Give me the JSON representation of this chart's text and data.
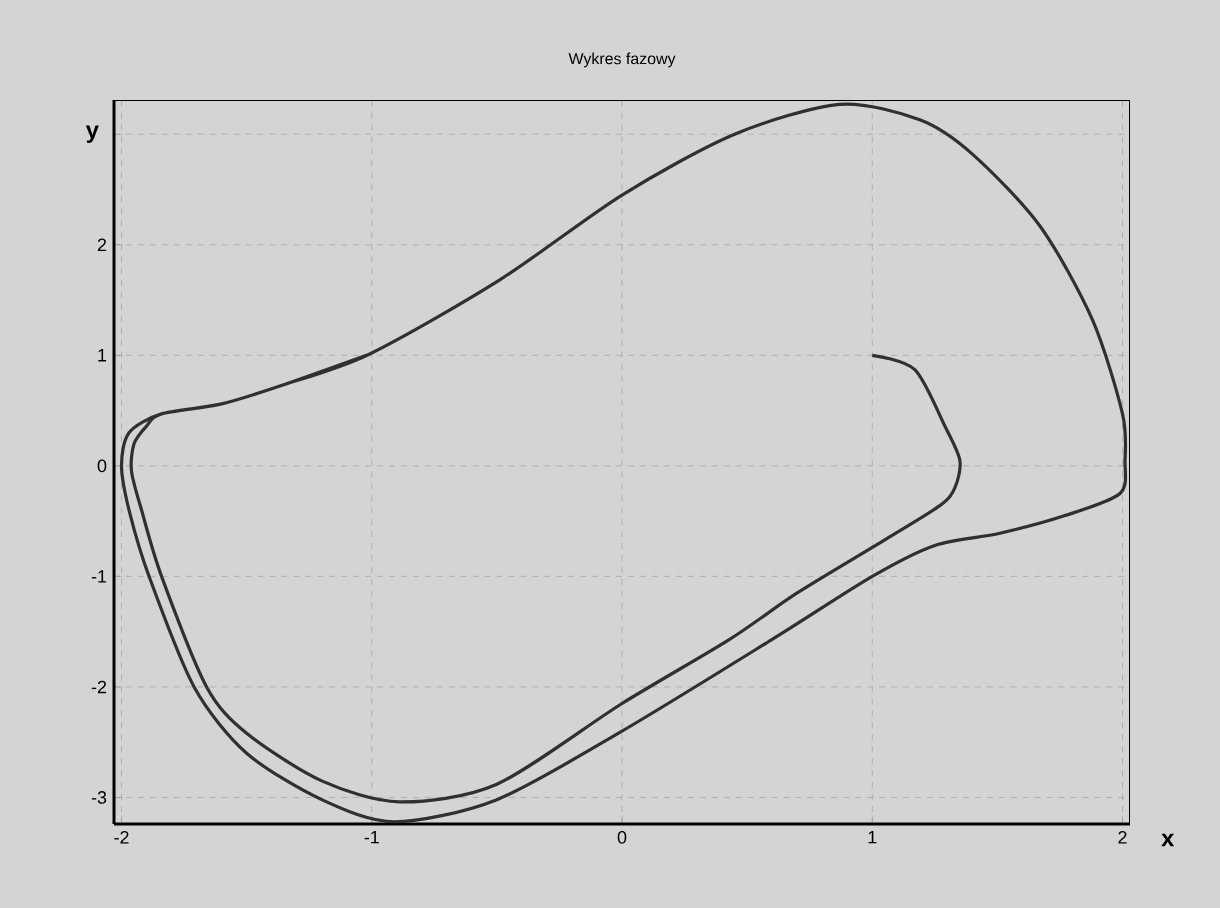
{
  "chart_data": {
    "type": "line",
    "title": "Wykres fazowy",
    "xlabel": "x",
    "ylabel": "y",
    "xlim": [
      -2.03,
      2.03
    ],
    "ylim": [
      -3.24,
      3.31
    ],
    "xticks": [
      -2,
      -1,
      0,
      1,
      2
    ],
    "yticks": [
      -3,
      -2,
      -1,
      0,
      1,
      2,
      {
        "value": 3,
        "label": null
      }
    ],
    "grid": true,
    "marker": "none",
    "line_style": "solid",
    "series": [
      {
        "color": "#303030",
        "x": [
          1.0,
          1.17,
          1.29,
          1.35,
          1.33,
          1.27,
          1.05,
          0.7,
          0.43,
          0.0,
          -0.5,
          -0.89,
          -1.2,
          -1.5,
          -1.66,
          -1.84,
          -1.92,
          -1.96,
          -1.95,
          -1.9,
          -1.84,
          -1.6,
          -1.37,
          -1.01,
          -0.49,
          0.0,
          0.45,
          0.87,
          1.19,
          1.4,
          1.67,
          1.88,
          2.0,
          2.01,
          1.99,
          1.77,
          1.51,
          1.25,
          1.0,
          0.6,
          0.0,
          -0.5,
          -0.91,
          -1.2,
          -1.5,
          -1.71,
          -1.89,
          -1.97,
          -2.0,
          -1.97,
          -1.84,
          -1.6,
          -1.37,
          -1.01
        ],
        "values": [
          1.0,
          0.87,
          0.36,
          0.05,
          -0.2,
          -0.36,
          -0.67,
          -1.15,
          -1.57,
          -2.15,
          -2.88,
          -3.04,
          -2.85,
          -2.42,
          -2.0,
          -1.0,
          -0.4,
          -0.05,
          0.2,
          0.36,
          0.47,
          0.56,
          0.72,
          1.01,
          1.68,
          2.45,
          3.0,
          3.27,
          3.13,
          2.82,
          2.17,
          1.32,
          0.47,
          0.05,
          -0.25,
          -0.45,
          -0.61,
          -0.72,
          -1.0,
          -1.57,
          -2.4,
          -3.02,
          -3.22,
          -3.02,
          -2.6,
          -2.0,
          -1.0,
          -0.4,
          0.0,
          0.3,
          0.47,
          0.56,
          0.72,
          1.01
        ]
      }
    ]
  }
}
